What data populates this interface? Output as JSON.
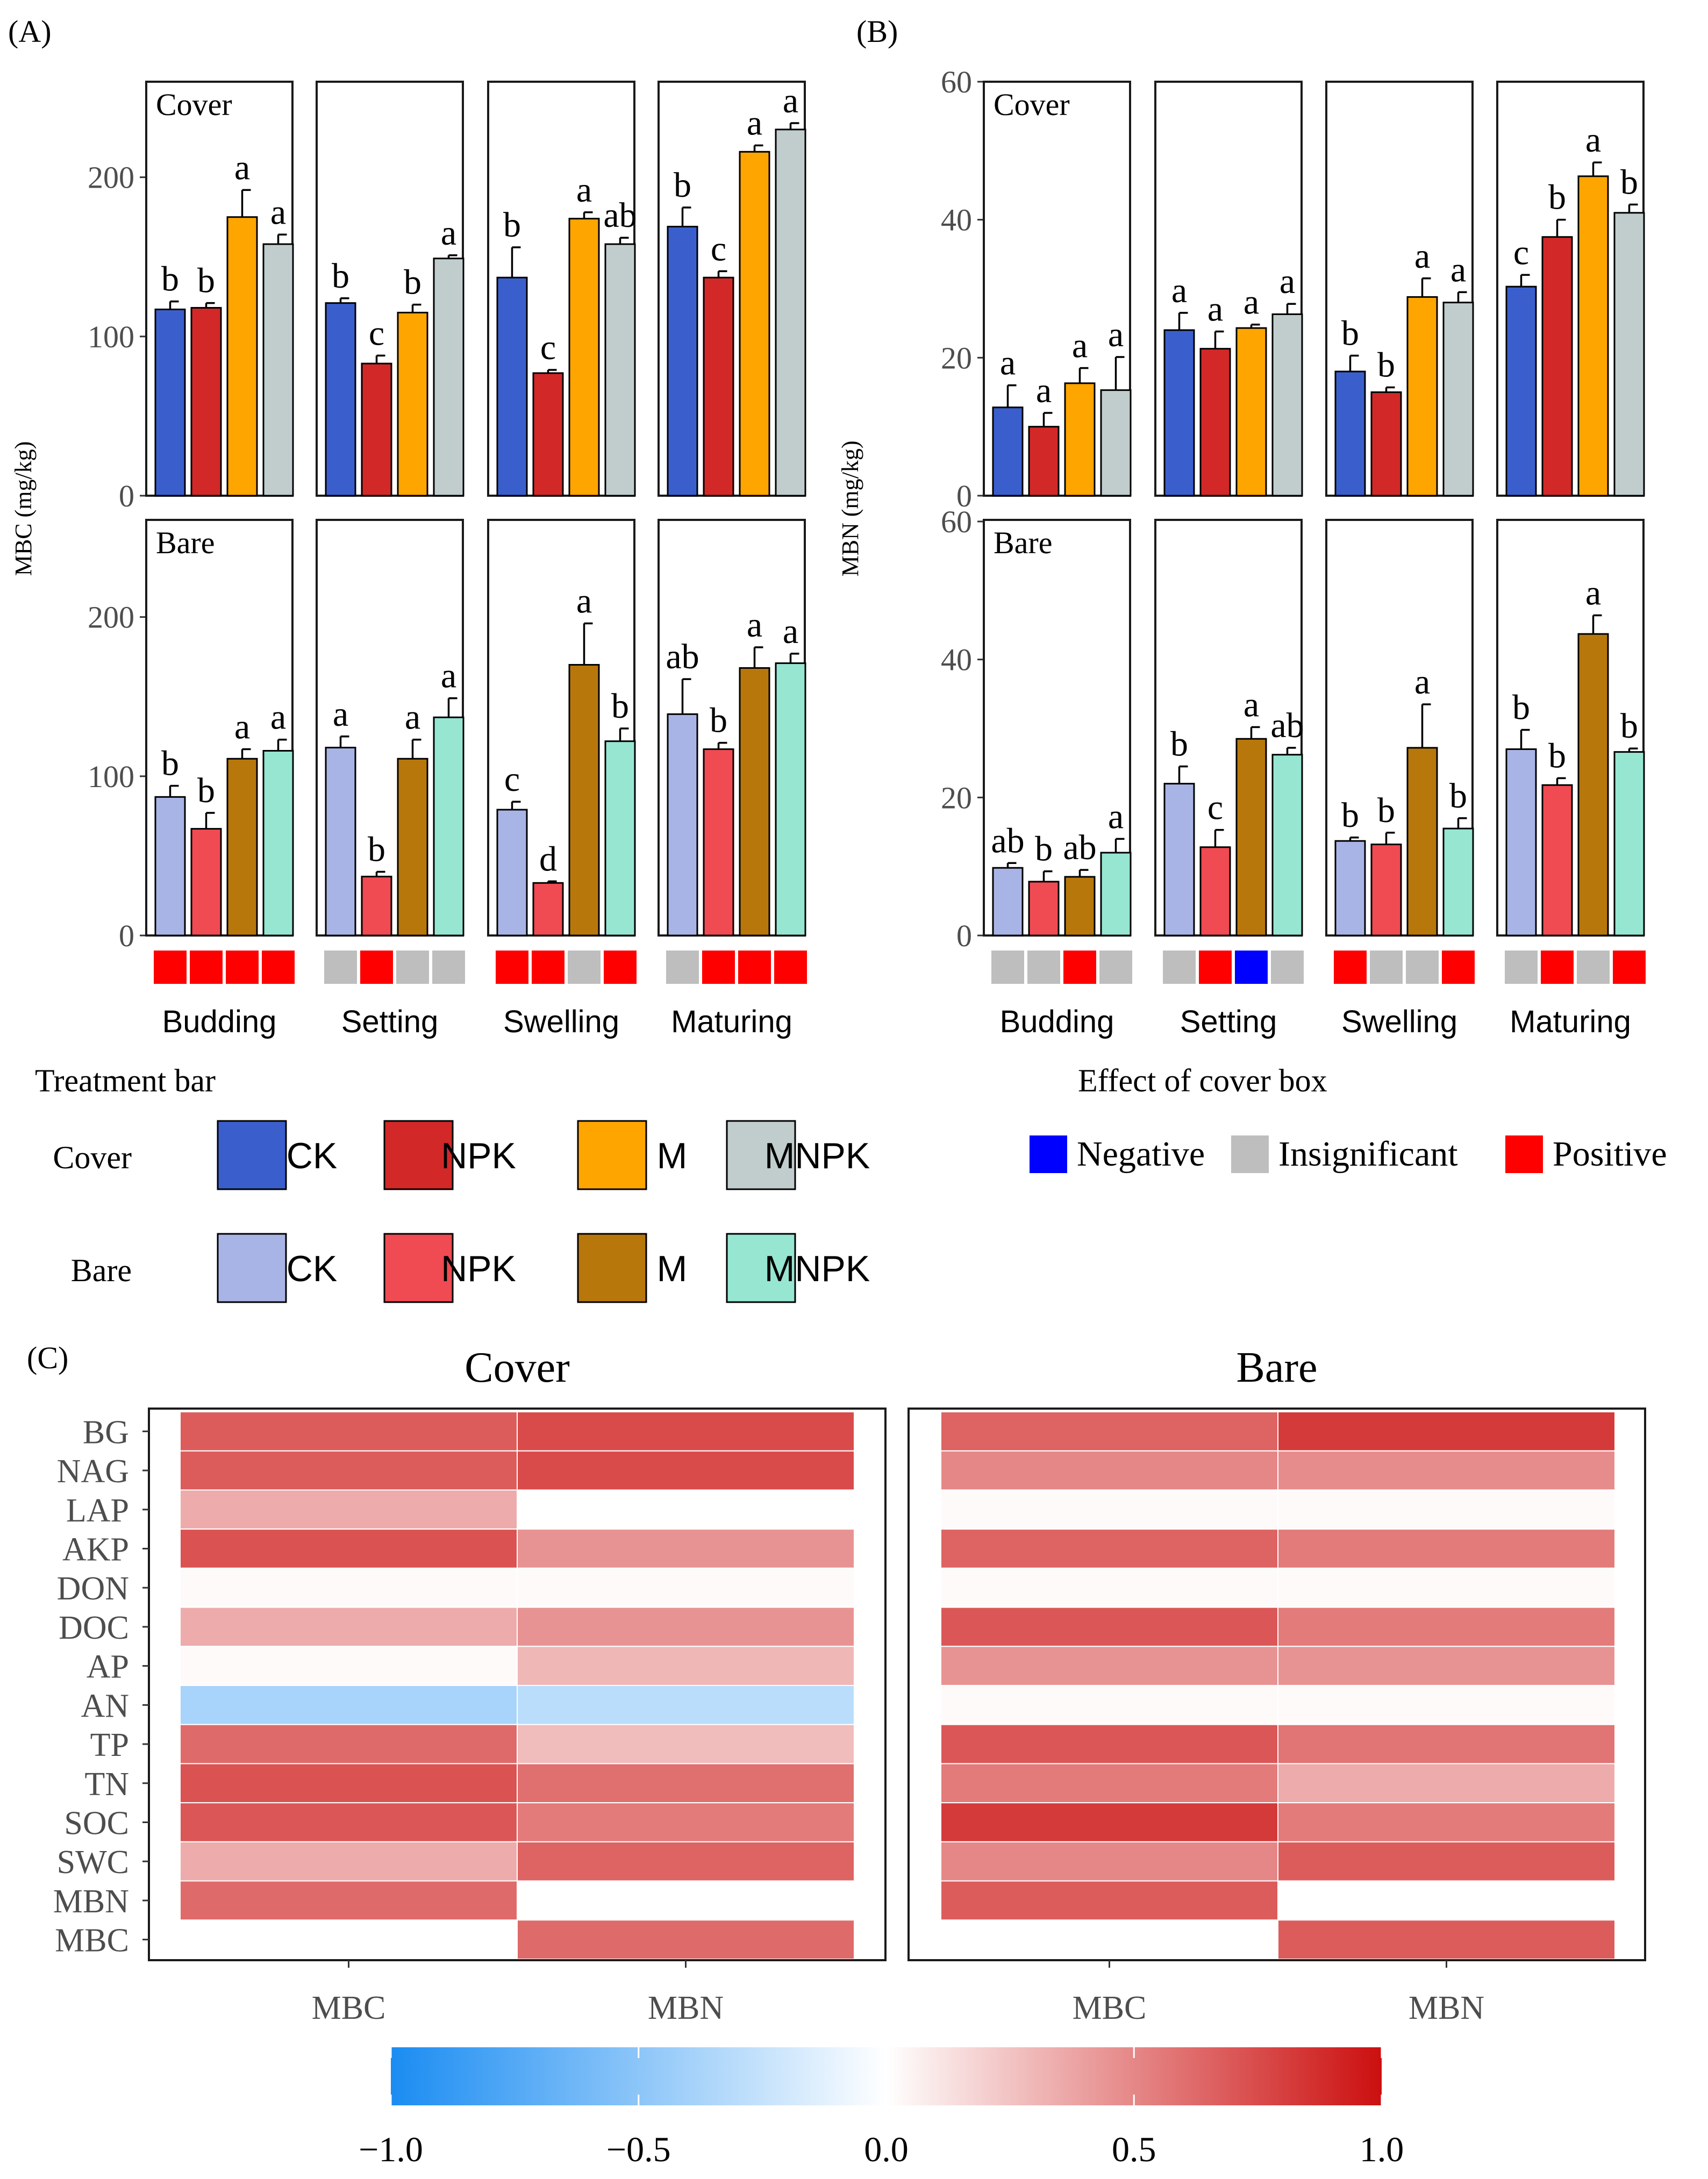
{
  "panels": {
    "a": "(A)",
    "b": "(B)",
    "c": "(C)"
  },
  "chart_data": [
    {
      "id": "A",
      "type": "bar",
      "ylabel": "MBC (mg/kg)",
      "ylim": [
        0,
        260
      ],
      "yticks": [
        0,
        100,
        200
      ],
      "stages": [
        "Budding",
        "Setting",
        "Swelling",
        "Maturing"
      ],
      "treatments": [
        "CK",
        "NPK",
        "M",
        "MNPK"
      ],
      "rows": [
        {
          "name": "Cover",
          "values": [
            [
              117,
              118,
              175,
              158
            ],
            [
              121,
              83,
              115,
              149
            ],
            [
              137,
              77,
              174,
              158
            ],
            [
              169,
              137,
              216,
              230
            ]
          ],
          "errors": [
            [
              5,
              3,
              17,
              6
            ],
            [
              3,
              5,
              5,
              2
            ],
            [
              19,
              2,
              4,
              4
            ],
            [
              12,
              4,
              4,
              4
            ]
          ],
          "letters": [
            [
              "b",
              "b",
              "a",
              "a"
            ],
            [
              "b",
              "c",
              "b",
              "a"
            ],
            [
              "b",
              "c",
              "a",
              "ab"
            ],
            [
              "b",
              "c",
              "a",
              "a"
            ]
          ]
        },
        {
          "name": "Bare",
          "values": [
            [
              87,
              67,
              111,
              116
            ],
            [
              118,
              37,
              111,
              137
            ],
            [
              79,
              33,
              170,
              122
            ],
            [
              139,
              117,
              168,
              171
            ]
          ],
          "errors": [
            [
              7,
              10,
              6,
              7
            ],
            [
              7,
              3,
              12,
              12
            ],
            [
              5,
              1,
              26,
              8
            ],
            [
              22,
              4,
              13,
              6
            ]
          ],
          "letters": [
            [
              "b",
              "b",
              "a",
              "a"
            ],
            [
              "a",
              "b",
              "a",
              "a"
            ],
            [
              "c",
              "d",
              "a",
              "b"
            ],
            [
              "ab",
              "b",
              "a",
              "a"
            ]
          ]
        }
      ],
      "effect_boxes": [
        [
          "Positive",
          "Positive",
          "Positive",
          "Positive"
        ],
        [
          "Insignificant",
          "Positive",
          "Insignificant",
          "Insignificant"
        ],
        [
          "Positive",
          "Positive",
          "Insignificant",
          "Positive"
        ],
        [
          "Insignificant",
          "Positive",
          "Positive",
          "Positive"
        ]
      ]
    },
    {
      "id": "B",
      "type": "bar",
      "ylabel": "MBN (mg/kg)",
      "ylim": [
        0,
        60
      ],
      "yticks": [
        0,
        20,
        40,
        60
      ],
      "stages": [
        "Budding",
        "Setting",
        "Swelling",
        "Maturing"
      ],
      "treatments": [
        "CK",
        "NPK",
        "M",
        "MNPK"
      ],
      "rows": [
        {
          "name": "Cover",
          "values": [
            [
              12.8,
              10.0,
              16.3,
              15.3
            ],
            [
              24.0,
              21.3,
              24.3,
              26.3
            ],
            [
              18.0,
              15.0,
              28.8,
              28.0
            ],
            [
              30.3,
              37.5,
              46.3,
              41.0
            ]
          ],
          "errors": [
            [
              3.2,
              2.0,
              2.2,
              4.8
            ],
            [
              2.5,
              2.5,
              0.5,
              1.5
            ],
            [
              2.3,
              0.7,
              2.7,
              1.5
            ],
            [
              1.7,
              2.5,
              2.0,
              1.2
            ]
          ],
          "letters": [
            [
              "a",
              "a",
              "a",
              "a"
            ],
            [
              "a",
              "a",
              "a",
              "a"
            ],
            [
              "b",
              "b",
              "a",
              "a"
            ],
            [
              "c",
              "b",
              "a",
              "b"
            ]
          ]
        },
        {
          "name": "Bare",
          "values": [
            [
              9.8,
              7.8,
              8.5,
              12.0
            ],
            [
              22.0,
              12.8,
              28.5,
              26.2
            ],
            [
              13.7,
              13.2,
              27.2,
              15.5
            ],
            [
              27.0,
              21.8,
              43.7,
              26.6
            ]
          ],
          "errors": [
            [
              0.7,
              1.5,
              1.0,
              2.0
            ],
            [
              2.5,
              2.5,
              1.7,
              1.0
            ],
            [
              0.5,
              1.7,
              6.3,
              1.5
            ],
            [
              2.8,
              1.0,
              2.7,
              0.5
            ]
          ],
          "letters": [
            [
              "ab",
              "b",
              "ab",
              "a"
            ],
            [
              "b",
              "c",
              "a",
              "ab"
            ],
            [
              "b",
              "b",
              "a",
              "b"
            ],
            [
              "b",
              "b",
              "a",
              "b"
            ]
          ]
        }
      ],
      "effect_boxes": [
        [
          "Insignificant",
          "Insignificant",
          "Positive",
          "Insignificant"
        ],
        [
          "Insignificant",
          "Positive",
          "Negative",
          "Insignificant"
        ],
        [
          "Positive",
          "Insignificant",
          "Insignificant",
          "Positive"
        ],
        [
          "Insignificant",
          "Positive",
          "Insignificant",
          "Positive"
        ]
      ]
    },
    {
      "id": "C",
      "type": "heatmap",
      "facets": [
        "Cover",
        "Bare"
      ],
      "xcategories": [
        "MBC",
        "MBN"
      ],
      "ycategories": [
        "BG",
        "NAG",
        "LAP",
        "AKP",
        "DON",
        "DOC",
        "AP",
        "AN",
        "TP",
        "TN",
        "SOC",
        "SWC",
        "MBN",
        "MBC"
      ],
      "values": {
        "Cover": [
          [
            0.68,
            0.75
          ],
          [
            0.68,
            0.75
          ],
          [
            0.35,
            null
          ],
          [
            0.72,
            0.45
          ],
          [
            0.02,
            0.02
          ],
          [
            0.35,
            0.45
          ],
          [
            0.02,
            0.3
          ],
          [
            -0.38,
            -0.3
          ],
          [
            0.62,
            0.28
          ],
          [
            0.72,
            0.6
          ],
          [
            0.7,
            0.55
          ],
          [
            0.35,
            0.65
          ],
          [
            0.62,
            null
          ],
          [
            null,
            0.62
          ]
        ],
        "Bare": [
          [
            0.65,
            0.82
          ],
          [
            0.5,
            0.48
          ],
          [
            0.02,
            0.02
          ],
          [
            0.65,
            0.55
          ],
          [
            0.02,
            0.02
          ],
          [
            0.7,
            0.55
          ],
          [
            0.45,
            0.45
          ],
          [
            0.02,
            0.02
          ],
          [
            0.7,
            0.58
          ],
          [
            0.55,
            0.35
          ],
          [
            0.82,
            0.55
          ],
          [
            0.5,
            0.68
          ],
          [
            0.68,
            null
          ],
          [
            null,
            0.68
          ]
        ]
      },
      "colorbar": {
        "min": -1.0,
        "max": 1.0,
        "ticks": [
          "−1.0",
          "−0.5",
          "0.0",
          "0.5",
          "1.0"
        ],
        "low": "#1a8cf2",
        "mid": "#ffffff",
        "high": "#cc0f0f"
      }
    }
  ],
  "legend_treatment": {
    "title": "Treatment bar",
    "rows": [
      {
        "label": "Cover",
        "items": [
          {
            "name": "CK",
            "color": "#3a5fcd"
          },
          {
            "name": "NPK",
            "color": "#d32828"
          },
          {
            "name": "M",
            "color": "#ffa500"
          },
          {
            "name": "MNPK",
            "color": "#c1cdcd"
          }
        ]
      },
      {
        "label": "Bare",
        "items": [
          {
            "name": "CK",
            "color": "#a9b4e6"
          },
          {
            "name": "NPK",
            "color": "#f04a52"
          },
          {
            "name": "M",
            "color": "#b8770b"
          },
          {
            "name": "MNPK",
            "color": "#96e6d2"
          }
        ]
      }
    ]
  },
  "legend_effect": {
    "title": "Effect of cover box",
    "items": [
      {
        "name": "Negative",
        "color": "#0000ff"
      },
      {
        "name": "Insignificant",
        "color": "#bebebe"
      },
      {
        "name": "Positive",
        "color": "#ff0000"
      }
    ]
  }
}
